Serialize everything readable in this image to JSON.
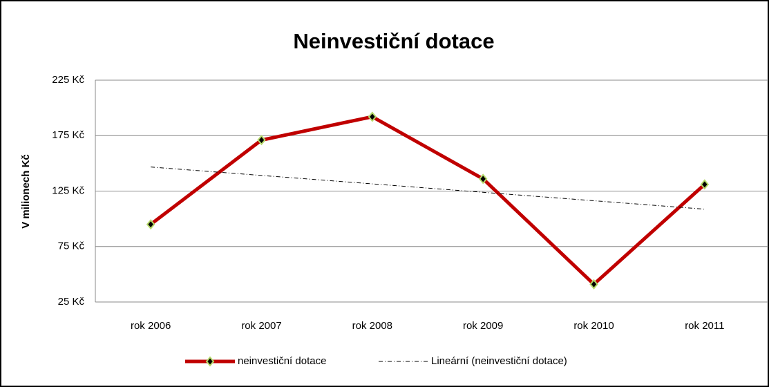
{
  "chart_data": {
    "type": "line",
    "title": "Neinvestiční dotace",
    "y_label": "V milionech Kč",
    "categories": [
      "rok 2006",
      "rok 2007",
      "rok 2008",
      "rok 2009",
      "rok 2010",
      "rok 2011"
    ],
    "series": [
      {
        "name": "neinvestiční dotace",
        "color": "#c00000",
        "marker": "diamond",
        "values": [
          95,
          171,
          192,
          136,
          41,
          131
        ]
      },
      {
        "name": "Lineární (neinvestiční dotace)",
        "color": "#000000",
        "dash": "dashdot",
        "values": [
          146.7,
          139.1,
          131.5,
          123.9,
          116.3,
          108.7
        ]
      }
    ],
    "ylim": [
      25,
      225
    ],
    "yticks": [
      {
        "value": 25,
        "label": "25 Kč"
      },
      {
        "value": 75,
        "label": "75 Kč"
      },
      {
        "value": 125,
        "label": "125 Kč"
      },
      {
        "value": 175,
        "label": "175 Kč"
      },
      {
        "value": 225,
        "label": "225 Kč"
      }
    ],
    "grid": true,
    "legend": "bottom"
  }
}
